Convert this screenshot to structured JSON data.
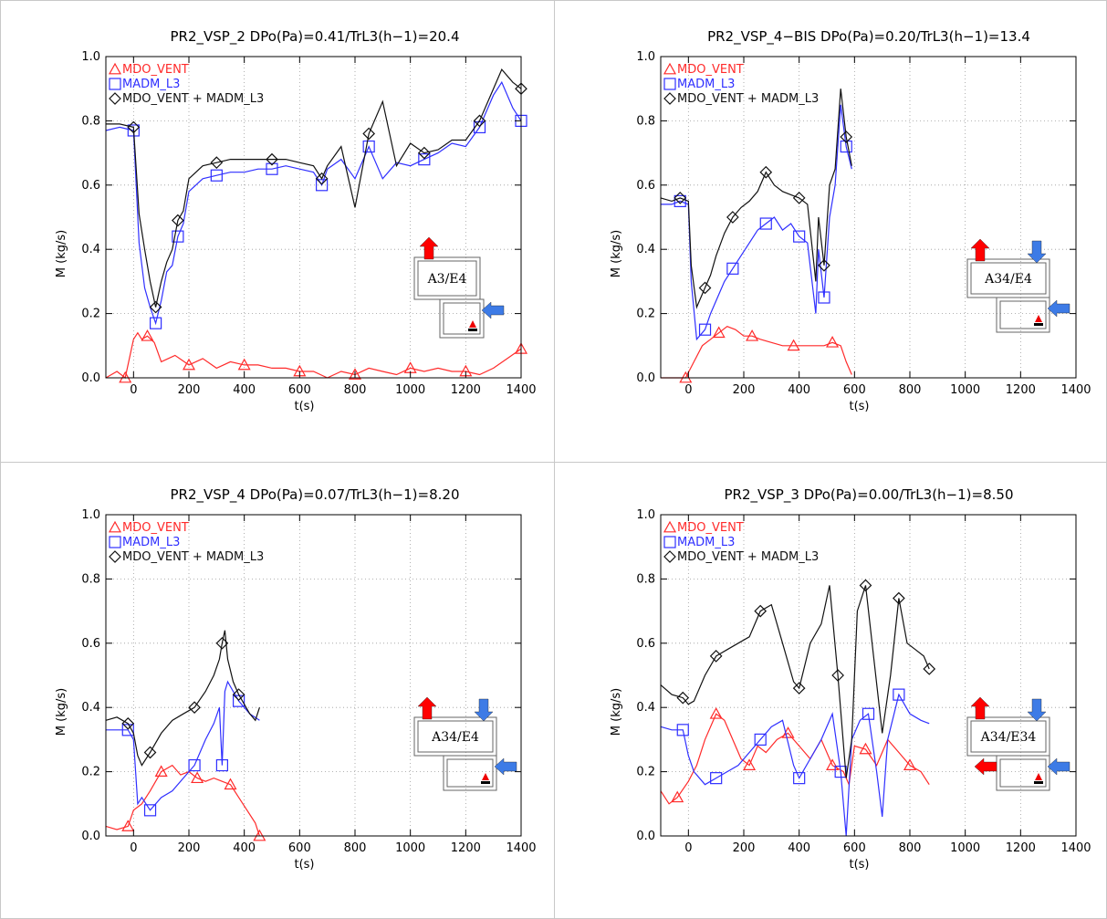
{
  "colors": {
    "MDO_VENT": "#ff2a2a",
    "MADM_L3": "#2f2fff",
    "SUM": "#111111",
    "arrow_red": "#ff0000",
    "arrow_blue": "#3d7be6"
  },
  "chart_data": [
    {
      "type": "line",
      "title": "PR2_VSP_2  DPo(Pa)=0.41/TrL3(h−1)=20.4",
      "xlabel": "t(s)",
      "ylabel": "M   (kg/s)",
      "xlim": [
        -100,
        1400
      ],
      "ylim": [
        0,
        1.0
      ],
      "xticks": [
        0,
        200,
        400,
        600,
        800,
        1000,
        1200,
        1400
      ],
      "yticks": [
        "0.0",
        "0.2",
        "0.4",
        "0.6",
        "0.8",
        "1.0"
      ],
      "grid": true,
      "legend": "top-left",
      "diagram": {
        "label": "A3/E4",
        "type": "A3"
      },
      "series": [
        {
          "name": "MDO_VENT",
          "marker": "triangle",
          "x": [
            -100,
            -60,
            -30,
            0,
            15,
            30,
            50,
            75,
            100,
            150,
            200,
            250,
            300,
            350,
            400,
            450,
            500,
            550,
            600,
            650,
            700,
            750,
            800,
            850,
            900,
            950,
            1000,
            1050,
            1100,
            1150,
            1200,
            1250,
            1300,
            1350,
            1400
          ],
          "y": [
            0.0,
            0.02,
            0.0,
            0.12,
            0.14,
            0.12,
            0.13,
            0.11,
            0.05,
            0.07,
            0.04,
            0.06,
            0.03,
            0.05,
            0.04,
            0.04,
            0.03,
            0.03,
            0.02,
            0.02,
            0.0,
            0.02,
            0.01,
            0.03,
            0.02,
            0.01,
            0.03,
            0.02,
            0.03,
            0.02,
            0.02,
            0.01,
            0.03,
            0.06,
            0.09
          ]
        },
        {
          "name": "MADM_L3",
          "marker": "square",
          "x": [
            -100,
            -50,
            0,
            20,
            40,
            60,
            80,
            100,
            120,
            140,
            160,
            180,
            200,
            250,
            300,
            350,
            400,
            450,
            500,
            550,
            600,
            650,
            680,
            700,
            750,
            800,
            850,
            900,
            950,
            1000,
            1050,
            1100,
            1150,
            1200,
            1250,
            1300,
            1330,
            1370,
            1400
          ],
          "y": [
            0.77,
            0.78,
            0.77,
            0.42,
            0.28,
            0.22,
            0.17,
            0.24,
            0.33,
            0.35,
            0.44,
            0.48,
            0.58,
            0.62,
            0.63,
            0.64,
            0.64,
            0.65,
            0.65,
            0.66,
            0.65,
            0.64,
            0.6,
            0.65,
            0.68,
            0.62,
            0.72,
            0.62,
            0.67,
            0.66,
            0.68,
            0.7,
            0.73,
            0.72,
            0.78,
            0.88,
            0.92,
            0.84,
            0.8
          ]
        },
        {
          "name": "MDO_VENT  +  MADM_L3",
          "marker": "diamond",
          "x": [
            -100,
            -50,
            0,
            20,
            40,
            60,
            80,
            100,
            120,
            140,
            160,
            180,
            200,
            250,
            300,
            350,
            400,
            450,
            500,
            550,
            600,
            650,
            680,
            700,
            750,
            800,
            850,
            900,
            950,
            1000,
            1050,
            1100,
            1150,
            1200,
            1250,
            1300,
            1330,
            1370,
            1400
          ],
          "y": [
            0.79,
            0.79,
            0.78,
            0.51,
            0.4,
            0.3,
            0.22,
            0.3,
            0.36,
            0.4,
            0.49,
            0.52,
            0.62,
            0.66,
            0.67,
            0.68,
            0.68,
            0.68,
            0.68,
            0.68,
            0.67,
            0.66,
            0.62,
            0.66,
            0.72,
            0.53,
            0.76,
            0.86,
            0.66,
            0.73,
            0.7,
            0.71,
            0.74,
            0.74,
            0.8,
            0.9,
            0.96,
            0.92,
            0.9
          ]
        }
      ]
    },
    {
      "type": "line",
      "title": "PR2_VSP_4−BIS  DPo(Pa)=0.20/TrL3(h−1)=13.4",
      "xlabel": "t(s)",
      "ylabel": "M   (kg/s)",
      "xlim": [
        -100,
        1400
      ],
      "ylim": [
        0,
        1.0
      ],
      "xticks": [
        0,
        200,
        400,
        600,
        800,
        1000,
        1200,
        1400
      ],
      "yticks": [
        "0.0",
        "0.2",
        "0.4",
        "0.6",
        "0.8",
        "1.0"
      ],
      "grid": true,
      "legend": "top-left",
      "diagram": {
        "label": "A34/E4",
        "type": "A34"
      },
      "series": [
        {
          "name": "MDO_VENT",
          "marker": "triangle",
          "x": [
            -100,
            -40,
            -10,
            20,
            50,
            80,
            110,
            140,
            170,
            200,
            230,
            260,
            300,
            340,
            380,
            420,
            460,
            490,
            520,
            550,
            570,
            590
          ],
          "y": [
            0.0,
            0.0,
            0.0,
            0.05,
            0.1,
            0.12,
            0.14,
            0.16,
            0.15,
            0.13,
            0.13,
            0.12,
            0.11,
            0.1,
            0.1,
            0.1,
            0.1,
            0.1,
            0.11,
            0.1,
            0.05,
            0.01
          ]
        },
        {
          "name": "MADM_L3",
          "marker": "square",
          "x": [
            -100,
            -60,
            -30,
            0,
            10,
            30,
            60,
            80,
            100,
            130,
            160,
            190,
            220,
            250,
            280,
            310,
            340,
            370,
            400,
            430,
            460,
            470,
            490,
            510,
            530,
            550,
            570,
            590
          ],
          "y": [
            0.54,
            0.54,
            0.55,
            0.54,
            0.3,
            0.12,
            0.15,
            0.2,
            0.24,
            0.3,
            0.34,
            0.38,
            0.42,
            0.46,
            0.48,
            0.5,
            0.46,
            0.48,
            0.44,
            0.42,
            0.2,
            0.4,
            0.25,
            0.5,
            0.6,
            0.85,
            0.72,
            0.65
          ]
        },
        {
          "name": "MDO_VENT  +  MADM_L3",
          "marker": "diamond",
          "x": [
            -100,
            -60,
            -30,
            0,
            10,
            30,
            60,
            80,
            100,
            130,
            160,
            190,
            220,
            250,
            280,
            310,
            340,
            370,
            400,
            430,
            460,
            470,
            490,
            510,
            530,
            550,
            570,
            590
          ],
          "y": [
            0.56,
            0.55,
            0.56,
            0.55,
            0.35,
            0.22,
            0.28,
            0.32,
            0.38,
            0.45,
            0.5,
            0.53,
            0.55,
            0.58,
            0.64,
            0.6,
            0.58,
            0.57,
            0.56,
            0.54,
            0.3,
            0.5,
            0.35,
            0.6,
            0.65,
            0.9,
            0.75,
            0.66
          ]
        }
      ]
    },
    {
      "type": "line",
      "title": "PR2_VSP_4  DPo(Pa)=0.07/TrL3(h−1)=8.20",
      "xlabel": "t(s)",
      "ylabel": "M   (kg/s)",
      "xlim": [
        -100,
        1400
      ],
      "ylim": [
        0,
        1.0
      ],
      "xticks": [
        0,
        200,
        400,
        600,
        800,
        1000,
        1200,
        1400
      ],
      "yticks": [
        "0.0",
        "0.2",
        "0.4",
        "0.6",
        "0.8",
        "1.0"
      ],
      "grid": true,
      "legend": "top-left",
      "diagram": {
        "label": "A34/E4",
        "type": "A34"
      },
      "series": [
        {
          "name": "MDO_VENT",
          "marker": "triangle",
          "x": [
            -100,
            -60,
            -20,
            0,
            30,
            60,
            100,
            140,
            170,
            200,
            230,
            260,
            290,
            320,
            350,
            380,
            410,
            440,
            455
          ],
          "y": [
            0.03,
            0.02,
            0.03,
            0.08,
            0.1,
            0.14,
            0.2,
            0.22,
            0.19,
            0.2,
            0.18,
            0.17,
            0.18,
            0.17,
            0.16,
            0.12,
            0.08,
            0.04,
            0.0
          ]
        },
        {
          "name": "MADM_L3",
          "marker": "square",
          "x": [
            -100,
            -60,
            -20,
            0,
            15,
            30,
            60,
            100,
            140,
            180,
            220,
            260,
            290,
            310,
            320,
            330,
            340,
            360,
            380,
            420,
            455
          ],
          "y": [
            0.33,
            0.33,
            0.33,
            0.3,
            0.1,
            0.12,
            0.08,
            0.12,
            0.14,
            0.18,
            0.22,
            0.3,
            0.35,
            0.4,
            0.22,
            0.45,
            0.48,
            0.45,
            0.42,
            0.38,
            0.36
          ]
        },
        {
          "name": "MDO_VENT  +  MADM_L3",
          "marker": "diamond",
          "x": [
            -100,
            -60,
            -20,
            0,
            15,
            30,
            60,
            100,
            140,
            180,
            220,
            260,
            290,
            310,
            320,
            330,
            340,
            360,
            380,
            420,
            440,
            455
          ],
          "y": [
            0.36,
            0.37,
            0.35,
            0.32,
            0.25,
            0.22,
            0.26,
            0.32,
            0.36,
            0.38,
            0.4,
            0.45,
            0.5,
            0.55,
            0.6,
            0.64,
            0.55,
            0.48,
            0.44,
            0.38,
            0.36,
            0.4
          ]
        }
      ]
    },
    {
      "type": "line",
      "title": "PR2_VSP_3  DPo(Pa)=0.00/TrL3(h−1)=8.50",
      "xlabel": "t(s)",
      "ylabel": "M   (kg/s)",
      "xlim": [
        -100,
        1400
      ],
      "ylim": [
        0,
        1.0
      ],
      "xticks": [
        0,
        200,
        400,
        600,
        800,
        1000,
        1200,
        1400
      ],
      "yticks": [
        "0.0",
        "0.2",
        "0.4",
        "0.6",
        "0.8",
        "1.0"
      ],
      "grid": true,
      "legend": "top-left",
      "diagram": {
        "label": "A34/E34",
        "type": "A34E34"
      },
      "series": [
        {
          "name": "MDO_VENT",
          "marker": "triangle",
          "x": [
            -100,
            -70,
            -40,
            0,
            30,
            60,
            100,
            130,
            160,
            190,
            220,
            250,
            280,
            320,
            360,
            400,
            440,
            480,
            520,
            560,
            580,
            600,
            640,
            680,
            720,
            760,
            800,
            840,
            870
          ],
          "y": [
            0.14,
            0.1,
            0.12,
            0.17,
            0.22,
            0.3,
            0.38,
            0.36,
            0.3,
            0.24,
            0.22,
            0.28,
            0.26,
            0.3,
            0.32,
            0.28,
            0.24,
            0.3,
            0.22,
            0.2,
            0.16,
            0.28,
            0.27,
            0.22,
            0.3,
            0.26,
            0.22,
            0.2,
            0.16
          ]
        },
        {
          "name": "MADM_L3",
          "marker": "square",
          "x": [
            -100,
            -60,
            -20,
            0,
            20,
            60,
            100,
            140,
            180,
            220,
            260,
            300,
            340,
            380,
            400,
            440,
            480,
            520,
            550,
            570,
            590,
            620,
            650,
            680,
            700,
            720,
            760,
            800,
            840,
            870
          ],
          "y": [
            0.34,
            0.33,
            0.33,
            0.25,
            0.2,
            0.16,
            0.18,
            0.2,
            0.22,
            0.26,
            0.3,
            0.34,
            0.36,
            0.22,
            0.18,
            0.24,
            0.3,
            0.38,
            0.2,
            0.0,
            0.3,
            0.36,
            0.38,
            0.2,
            0.06,
            0.3,
            0.44,
            0.38,
            0.36,
            0.35
          ]
        },
        {
          "name": "MDO_VENT  +  MADM_L3",
          "marker": "diamond",
          "x": [
            -100,
            -60,
            -20,
            0,
            20,
            60,
            100,
            140,
            180,
            220,
            260,
            300,
            340,
            380,
            400,
            440,
            480,
            510,
            540,
            570,
            590,
            610,
            640,
            670,
            700,
            730,
            760,
            790,
            820,
            850,
            870
          ],
          "y": [
            0.47,
            0.44,
            0.43,
            0.41,
            0.42,
            0.5,
            0.56,
            0.58,
            0.6,
            0.62,
            0.7,
            0.72,
            0.6,
            0.48,
            0.46,
            0.6,
            0.66,
            0.78,
            0.5,
            0.18,
            0.3,
            0.7,
            0.78,
            0.55,
            0.32,
            0.5,
            0.74,
            0.6,
            0.58,
            0.56,
            0.52
          ]
        }
      ]
    }
  ]
}
